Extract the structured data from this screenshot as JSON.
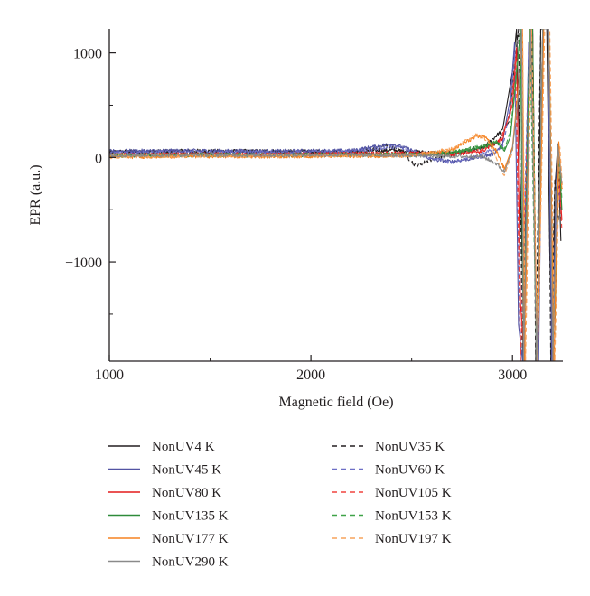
{
  "chart_data": {
    "type": "line",
    "title": "",
    "xlabel": "Magnetic field (Oe)",
    "ylabel": "EPR (a.u.)",
    "xlim": [
      1000,
      3250
    ],
    "ylim": [
      -1950,
      1230
    ],
    "x_ticks": [
      1000,
      2000,
      3000
    ],
    "x_tick_labels": [
      "1000",
      "2000",
      "3000"
    ],
    "y_ticks": [
      1000,
      0,
      -1000
    ],
    "y_tick_labels": [
      "1000",
      "0",
      "−1000"
    ],
    "grid": false,
    "legend_position": "bottom",
    "series": [
      {
        "name": "NonUV4 K",
        "color": "#231f20",
        "dash": "solid",
        "points": [
          [
            1000,
            55
          ],
          [
            1400,
            62
          ],
          [
            1800,
            60
          ],
          [
            2200,
            52
          ],
          [
            2400,
            70
          ],
          [
            2600,
            45
          ],
          [
            2750,
            50
          ],
          [
            2850,
            85
          ],
          [
            2950,
            260
          ],
          [
            3000,
            820
          ],
          [
            3020,
            1230
          ],
          [
            3045,
            -700
          ],
          [
            3060,
            -1950
          ],
          [
            3080,
            1000
          ],
          [
            3095,
            1230
          ],
          [
            3110,
            -900
          ],
          [
            3125,
            -1950
          ],
          [
            3140,
            1230
          ],
          [
            3170,
            1230
          ],
          [
            3185,
            -900
          ],
          [
            3200,
            -1950
          ],
          [
            3210,
            -300
          ],
          [
            3225,
            130
          ],
          [
            3240,
            -800
          ]
        ]
      },
      {
        "name": "NonUV35 K",
        "color": "#231f20",
        "dash": "dashed",
        "points": [
          [
            1000,
            40
          ],
          [
            1400,
            48
          ],
          [
            1800,
            45
          ],
          [
            2200,
            48
          ],
          [
            2380,
            110
          ],
          [
            2450,
            60
          ],
          [
            2520,
            -80
          ],
          [
            2600,
            -20
          ],
          [
            2750,
            50
          ],
          [
            2850,
            110
          ],
          [
            2930,
            140
          ],
          [
            2985,
            350
          ],
          [
            3010,
            900
          ],
          [
            3030,
            1230
          ],
          [
            3050,
            -1950
          ],
          [
            3080,
            900
          ],
          [
            3100,
            1230
          ],
          [
            3115,
            -1950
          ],
          [
            3140,
            1230
          ],
          [
            3175,
            1230
          ],
          [
            3190,
            -1950
          ],
          [
            3210,
            -200
          ],
          [
            3230,
            -600
          ]
        ]
      },
      {
        "name": "NonUV45 K",
        "color": "#5254a3",
        "dash": "solid",
        "points": [
          [
            1000,
            60
          ],
          [
            1400,
            65
          ],
          [
            1800,
            60
          ],
          [
            2200,
            65
          ],
          [
            2400,
            130
          ],
          [
            2500,
            70
          ],
          [
            2600,
            -20
          ],
          [
            2700,
            -40
          ],
          [
            2800,
            -10
          ],
          [
            2900,
            30
          ],
          [
            2950,
            120
          ],
          [
            2990,
            580
          ],
          [
            3010,
            1100
          ],
          [
            3030,
            -1600
          ],
          [
            3050,
            -1950
          ],
          [
            3080,
            1100
          ],
          [
            3100,
            1230
          ],
          [
            3115,
            -1500
          ],
          [
            3130,
            -1950
          ],
          [
            3150,
            1230
          ],
          [
            3175,
            1230
          ],
          [
            3195,
            -1950
          ],
          [
            3220,
            -100
          ],
          [
            3240,
            -500
          ]
        ]
      },
      {
        "name": "NonUV60 K",
        "color": "#6d6fc6",
        "dash": "dashed",
        "points": [
          [
            1000,
            45
          ],
          [
            1400,
            55
          ],
          [
            1800,
            50
          ],
          [
            2200,
            55
          ],
          [
            2420,
            100
          ],
          [
            2550,
            20
          ],
          [
            2700,
            -50
          ],
          [
            2850,
            40
          ],
          [
            2950,
            90
          ],
          [
            2990,
            500
          ],
          [
            3010,
            1000
          ],
          [
            3040,
            -1950
          ],
          [
            3080,
            1000
          ],
          [
            3100,
            1230
          ],
          [
            3120,
            -1950
          ],
          [
            3150,
            1230
          ],
          [
            3180,
            1230
          ],
          [
            3200,
            -1950
          ],
          [
            3225,
            50
          ],
          [
            3240,
            -400
          ]
        ]
      },
      {
        "name": "NonUV80 K",
        "color": "#e41a1c",
        "dash": "solid",
        "points": [
          [
            1000,
            20
          ],
          [
            1400,
            28
          ],
          [
            1800,
            25
          ],
          [
            2200,
            35
          ],
          [
            2500,
            40
          ],
          [
            2700,
            30
          ],
          [
            2850,
            60
          ],
          [
            2950,
            180
          ],
          [
            3000,
            500
          ],
          [
            3020,
            1050
          ],
          [
            3040,
            -1400
          ],
          [
            3060,
            -1950
          ],
          [
            3085,
            1100
          ],
          [
            3100,
            1230
          ],
          [
            3120,
            -1950
          ],
          [
            3150,
            1230
          ],
          [
            3180,
            1230
          ],
          [
            3205,
            -1950
          ],
          [
            3230,
            -100
          ],
          [
            3245,
            -600
          ]
        ]
      },
      {
        "name": "NonUV105 K",
        "color": "#f0443f",
        "dash": "dashed",
        "points": [
          [
            1000,
            25
          ],
          [
            1400,
            30
          ],
          [
            1800,
            28
          ],
          [
            2200,
            35
          ],
          [
            2500,
            35
          ],
          [
            2700,
            45
          ],
          [
            2850,
            70
          ],
          [
            2940,
            160
          ],
          [
            2990,
            420
          ],
          [
            3015,
            950
          ],
          [
            3040,
            -1950
          ],
          [
            3085,
            1000
          ],
          [
            3100,
            1230
          ],
          [
            3120,
            -1950
          ],
          [
            3150,
            1230
          ],
          [
            3180,
            1230
          ],
          [
            3205,
            -1950
          ],
          [
            3230,
            -150
          ],
          [
            3245,
            -700
          ]
        ]
      },
      {
        "name": "NonUV135 K",
        "color": "#2e8b3a",
        "dash": "solid",
        "points": [
          [
            1000,
            15
          ],
          [
            1400,
            22
          ],
          [
            1800,
            20
          ],
          [
            2200,
            25
          ],
          [
            2500,
            25
          ],
          [
            2700,
            40
          ],
          [
            2850,
            100
          ],
          [
            2920,
            140
          ],
          [
            2960,
            60
          ],
          [
            2990,
            200
          ],
          [
            3020,
            800
          ],
          [
            3040,
            1230
          ],
          [
            3055,
            -1950
          ],
          [
            3085,
            1230
          ],
          [
            3100,
            1230
          ],
          [
            3120,
            -1950
          ],
          [
            3150,
            1230
          ],
          [
            3180,
            1230
          ],
          [
            3205,
            -1950
          ],
          [
            3230,
            50
          ],
          [
            3245,
            -500
          ]
        ]
      },
      {
        "name": "NonUV153 K",
        "color": "#3fa348",
        "dash": "dashed",
        "points": [
          [
            1000,
            20
          ],
          [
            1400,
            25
          ],
          [
            1800,
            22
          ],
          [
            2200,
            28
          ],
          [
            2500,
            30
          ],
          [
            2700,
            45
          ],
          [
            2850,
            110
          ],
          [
            2920,
            160
          ],
          [
            2960,
            80
          ],
          [
            2990,
            250
          ],
          [
            3020,
            850
          ],
          [
            3040,
            1230
          ],
          [
            3055,
            -1950
          ],
          [
            3085,
            1230
          ],
          [
            3120,
            -1950
          ],
          [
            3150,
            1230
          ],
          [
            3180,
            1230
          ],
          [
            3205,
            -1950
          ],
          [
            3230,
            100
          ],
          [
            3245,
            -400
          ]
        ]
      },
      {
        "name": "NonUV177 K",
        "color": "#f58220",
        "dash": "solid",
        "points": [
          [
            1000,
            5
          ],
          [
            1400,
            12
          ],
          [
            1800,
            10
          ],
          [
            2200,
            15
          ],
          [
            2500,
            15
          ],
          [
            2700,
            70
          ],
          [
            2800,
            180
          ],
          [
            2860,
            210
          ],
          [
            2920,
            60
          ],
          [
            2960,
            -110
          ],
          [
            3000,
            100
          ],
          [
            3030,
            700
          ],
          [
            3050,
            1230
          ],
          [
            3060,
            -1950
          ],
          [
            3090,
            1230
          ],
          [
            3125,
            -1950
          ],
          [
            3155,
            1230
          ],
          [
            3180,
            1230
          ],
          [
            3205,
            -1950
          ],
          [
            3230,
            150
          ],
          [
            3245,
            -300
          ]
        ]
      },
      {
        "name": "NonUV197 K",
        "color": "#f7a35c",
        "dash": "dashed",
        "points": [
          [
            1000,
            10
          ],
          [
            1400,
            15
          ],
          [
            1800,
            12
          ],
          [
            2200,
            18
          ],
          [
            2500,
            20
          ],
          [
            2700,
            80
          ],
          [
            2820,
            220
          ],
          [
            2880,
            160
          ],
          [
            2930,
            -60
          ],
          [
            2960,
            -170
          ],
          [
            3000,
            50
          ],
          [
            3030,
            650
          ],
          [
            3050,
            1230
          ],
          [
            3065,
            -1950
          ],
          [
            3095,
            1230
          ],
          [
            3125,
            -1950
          ],
          [
            3160,
            1230
          ],
          [
            3185,
            1230
          ],
          [
            3210,
            -1950
          ],
          [
            3235,
            100
          ],
          [
            3248,
            -300
          ]
        ]
      },
      {
        "name": "NonUV290 K",
        "color": "#8a8a8a",
        "dash": "solid",
        "points": [
          [
            1000,
            20
          ],
          [
            1400,
            25
          ],
          [
            1800,
            22
          ],
          [
            2200,
            25
          ],
          [
            2500,
            20
          ],
          [
            2700,
            10
          ],
          [
            2850,
            10
          ],
          [
            2920,
            -60
          ],
          [
            2960,
            -140
          ],
          [
            3000,
            80
          ],
          [
            3030,
            600
          ],
          [
            3045,
            1230
          ],
          [
            3055,
            -1950
          ],
          [
            3090,
            1230
          ],
          [
            3120,
            -1950
          ],
          [
            3150,
            1230
          ],
          [
            3180,
            1230
          ],
          [
            3200,
            -1950
          ],
          [
            3225,
            120
          ],
          [
            3245,
            -250
          ]
        ]
      }
    ]
  }
}
